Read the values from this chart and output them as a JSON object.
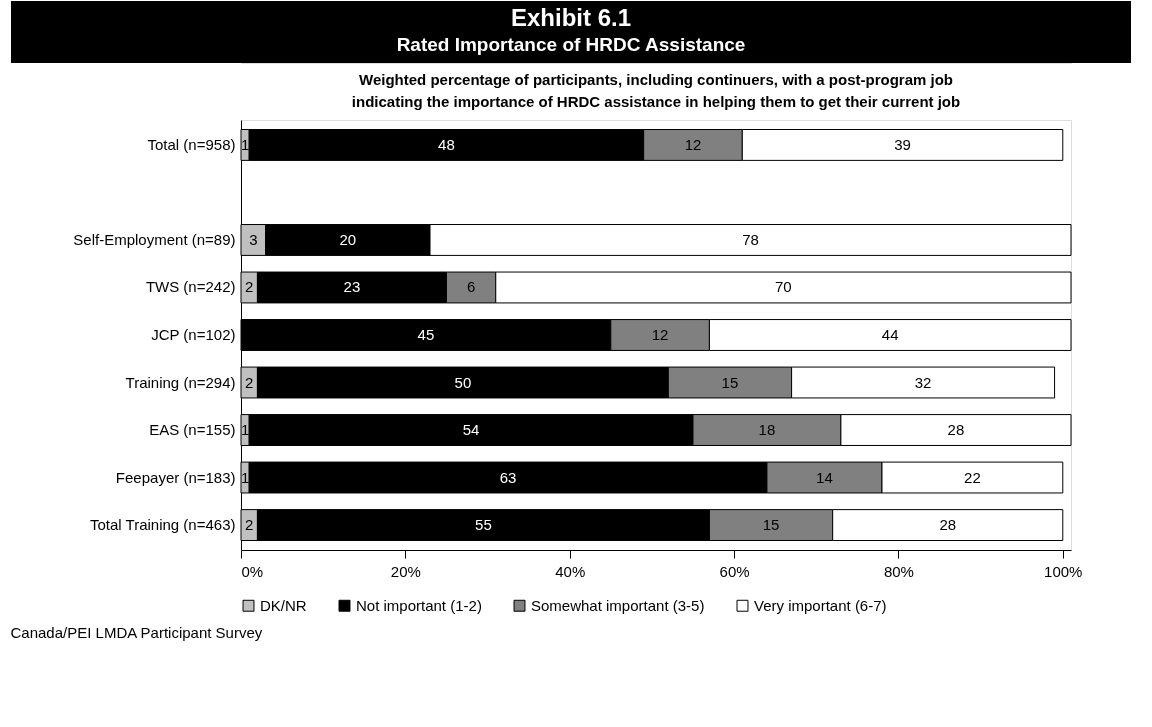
{
  "chart_data": {
    "type": "bar",
    "orientation": "horizontal",
    "stacked": true,
    "title": "Exhibit 6.1\nRated Importance of HRDC Assistance",
    "subtitle": "Weighted percentage of participants, including continuers, with a post-program job\nindicating the importance of HRDC assistance in helping them to get their current job",
    "categories": [
      "Total (n=958)",
      null,
      "Self-Employment (n=89)",
      "TWS (n=242)",
      "JCP (n=102)",
      "Training (n=294)",
      "EAS (n=155)",
      "Feepayer (n=183)",
      "Total Training (n=463)"
    ],
    "series": [
      {
        "name": "DK/NR",
        "color": "#c0c0c0",
        "values": [
          1,
          null,
          3,
          2,
          null,
          2,
          1,
          1,
          2
        ]
      },
      {
        "name": "Not important (1-2)",
        "color": "#000000",
        "values": [
          48,
          null,
          20,
          23,
          45,
          50,
          54,
          63,
          55
        ]
      },
      {
        "name": "Somewhat important (3-5)",
        "color": "#808080",
        "values": [
          12,
          null,
          null,
          6,
          12,
          15,
          18,
          14,
          15
        ]
      },
      {
        "name": "Very important (6-7)",
        "color": "#ffffff",
        "values": [
          39,
          null,
          78,
          70,
          44,
          32,
          28,
          22,
          28
        ]
      }
    ],
    "xlim": [
      0,
      101
    ],
    "xticks": [
      {
        "value": 0,
        "label": "0%"
      },
      {
        "value": 20,
        "label": "20%"
      },
      {
        "value": 40,
        "label": "40%"
      },
      {
        "value": 60,
        "label": "60%"
      },
      {
        "value": 80,
        "label": "80%"
      },
      {
        "value": 100,
        "label": "100%"
      }
    ],
    "data_labels": true,
    "grid": false,
    "legend": "bottom",
    "annotations": [
      "Canada/PEI LMDA Participant Survey"
    ]
  }
}
